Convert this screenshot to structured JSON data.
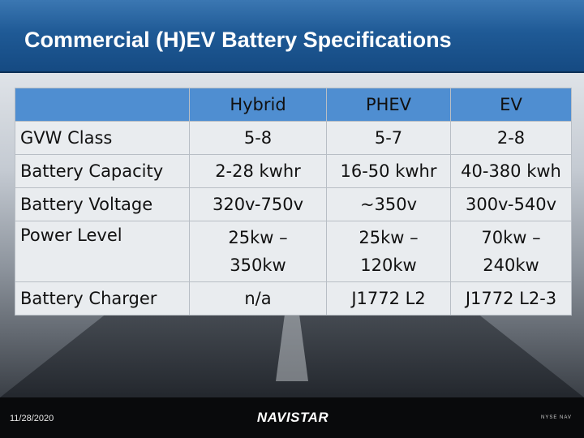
{
  "slide": {
    "title": "Commercial (H)EV Battery Specifications",
    "date": "11/28/2020",
    "logo_text": "NAVISTAR",
    "exchange_text": "NYSE NAV"
  },
  "table": {
    "headers": [
      "",
      "Hybrid",
      "PHEV",
      "EV"
    ],
    "rows": [
      {
        "label": "GVW Class",
        "hybrid": [
          "5-8"
        ],
        "phev": [
          "5-7"
        ],
        "ev": [
          "2-8"
        ]
      },
      {
        "label": "Battery Capacity",
        "hybrid": [
          "2-28 kwhr"
        ],
        "phev": [
          "16-50 kwhr"
        ],
        "ev": [
          "40-380 kwh"
        ]
      },
      {
        "label": "Battery Voltage",
        "hybrid": [
          "320v-750v"
        ],
        "phev": [
          "~350v"
        ],
        "ev": [
          "300v-540v"
        ]
      },
      {
        "label": "Power Level",
        "hybrid": [
          "25kw –",
          "350kw"
        ],
        "phev": [
          "25kw –",
          "120kw"
        ],
        "ev": [
          "70kw –",
          "240kw"
        ]
      },
      {
        "label": "Battery Charger",
        "hybrid": [
          "n/a"
        ],
        "phev": [
          "J1772 L2"
        ],
        "ev": [
          "J1772 L2-3"
        ]
      }
    ]
  },
  "colors": {
    "header_blue": "#1f5a96",
    "table_header": "#4f8ed1",
    "table_body": "#e9ecef",
    "footer": "#090a0c"
  }
}
